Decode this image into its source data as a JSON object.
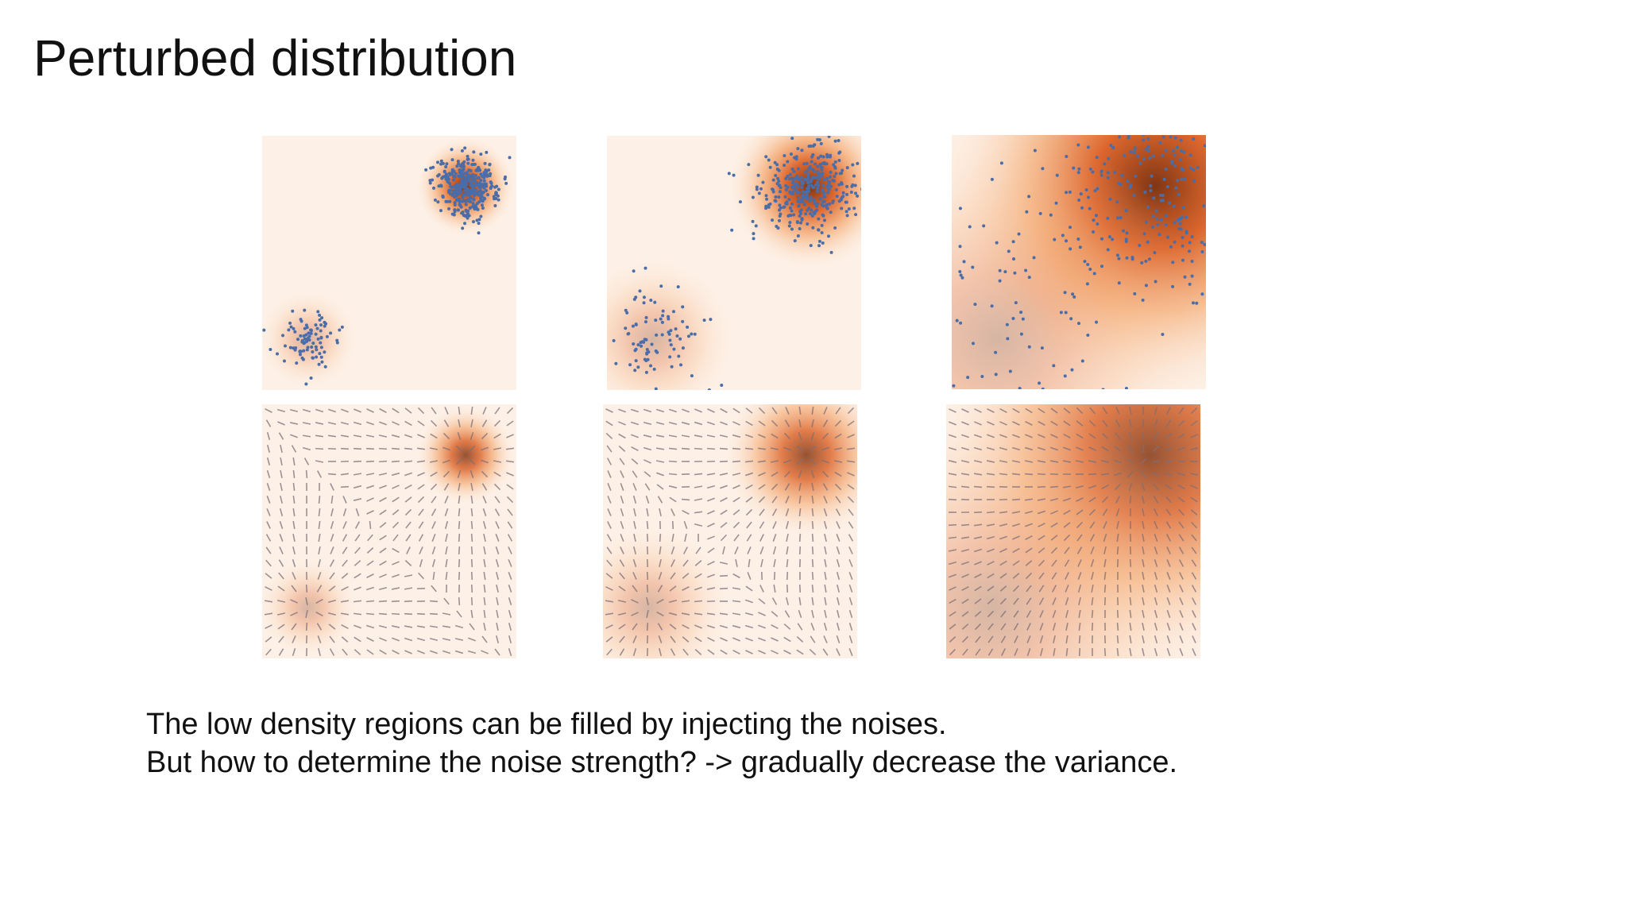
{
  "header": {
    "title": "Perturbed distribution"
  },
  "body": {
    "lines": [
      "The low density regions can be filled by injecting the noises.",
      "But how to determine the noise strength? -> gradually decrease the variance."
    ]
  }
}
